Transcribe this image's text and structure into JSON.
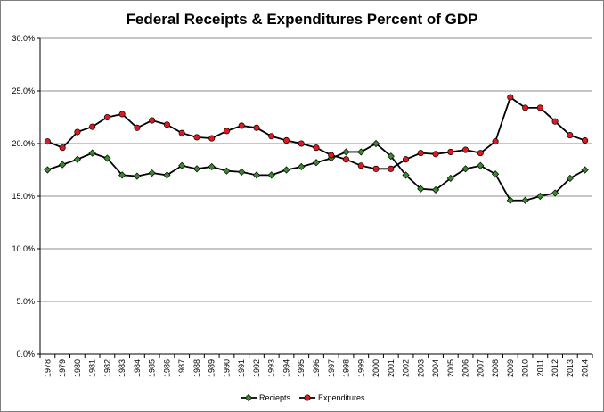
{
  "chart_data": {
    "type": "line",
    "title": "Federal Receipts & Expenditures Percent of GDP",
    "xlabel": "",
    "ylabel": "",
    "x": [
      "1978",
      "1979",
      "1980",
      "1981",
      "1982",
      "1983",
      "1984",
      "1985",
      "1986",
      "1987",
      "1988",
      "1989",
      "1990",
      "1991",
      "1992",
      "1993",
      "1994",
      "1995",
      "1996",
      "1997",
      "1998",
      "1999",
      "2000",
      "2001",
      "2002",
      "2003",
      "2004",
      "2005",
      "2006",
      "2007",
      "2008",
      "2009",
      "2010",
      "2011",
      "2012",
      "2013",
      "2014"
    ],
    "y_ticks": [
      "0.0%",
      "5.0%",
      "10.0%",
      "15.0%",
      "20.0%",
      "25.0%",
      "30.0%"
    ],
    "ylim": [
      0,
      30
    ],
    "grid": "horizontal",
    "legend": "bottom-center",
    "series": [
      {
        "name": "Reciepts",
        "color": "#3a8a2e",
        "marker": "diamond",
        "values": [
          17.5,
          18.0,
          18.5,
          19.1,
          18.6,
          17.0,
          16.9,
          17.2,
          17.0,
          17.9,
          17.6,
          17.8,
          17.4,
          17.3,
          17.0,
          17.0,
          17.5,
          17.8,
          18.2,
          18.6,
          19.2,
          19.2,
          20.0,
          18.8,
          17.0,
          15.7,
          15.6,
          16.7,
          17.6,
          17.9,
          17.1,
          14.6,
          14.6,
          15.0,
          15.3,
          16.7,
          17.5
        ]
      },
      {
        "name": "Expenditures",
        "color": "#e0191f",
        "marker": "circle",
        "values": [
          20.2,
          19.6,
          21.1,
          21.6,
          22.5,
          22.8,
          21.5,
          22.2,
          21.8,
          21.0,
          20.6,
          20.5,
          21.2,
          21.7,
          21.5,
          20.7,
          20.3,
          20.0,
          19.6,
          18.9,
          18.5,
          17.9,
          17.6,
          17.6,
          18.5,
          19.1,
          19.0,
          19.2,
          19.4,
          19.1,
          20.2,
          24.4,
          23.4,
          23.4,
          22.1,
          20.8,
          20.3
        ]
      }
    ]
  }
}
